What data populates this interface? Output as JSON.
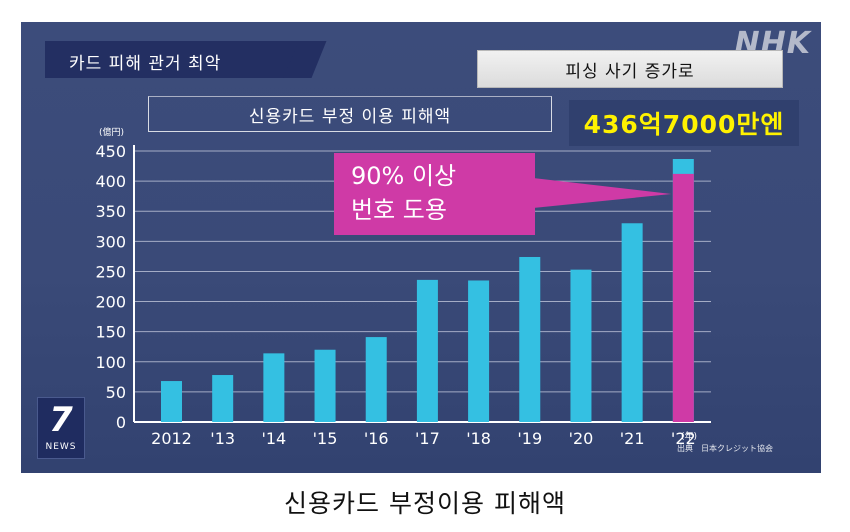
{
  "header": {
    "title": "카드 피해 관거 최악",
    "logo": "NHK"
  },
  "subtitle": "피싱 사기 증가로",
  "chart_title": "신용카드 부정 이용 피해액",
  "total_label": "436억7000만엔",
  "callout": {
    "line1": "90% 이상",
    "line2": "번호 도용"
  },
  "news_logo": {
    "mark": "7",
    "text": "NEWS"
  },
  "source": "出典　日本クレジット協会",
  "caption": "신용카드 부정이용 피해액",
  "colors": {
    "bar": "#34c0e2",
    "highlight": "#cf3aa6",
    "yellow": "#fff200"
  },
  "chart_data": {
    "type": "bar",
    "title": "신용카드 부정 이용 피해액",
    "ylabel": "(億円)",
    "xlabel": "(年)",
    "categories": [
      "2012",
      "'13",
      "'14",
      "'15",
      "'16",
      "'17",
      "'18",
      "'19",
      "'20",
      "'21",
      "'22"
    ],
    "values": [
      68,
      78,
      114,
      120,
      141,
      236,
      235,
      274,
      253,
      330,
      436.7
    ],
    "highlight": {
      "index": 10,
      "value": 412,
      "label": "90% 이상 번호 도용"
    },
    "ylim": [
      0,
      450
    ],
    "yticks": [
      0,
      50,
      100,
      150,
      200,
      250,
      300,
      350,
      400,
      450
    ],
    "grid": true
  }
}
